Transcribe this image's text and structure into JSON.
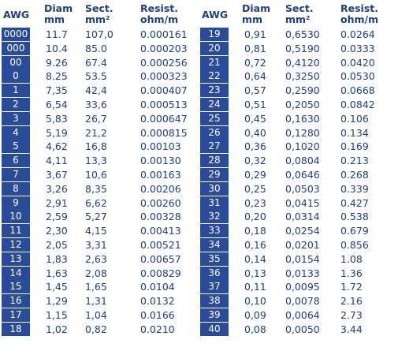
{
  "header": {
    "awg": "AWG",
    "diam": [
      "Diam",
      "mm"
    ],
    "sect": [
      "Sect.",
      "mm²"
    ],
    "resist": [
      "Resist.",
      "ohm/m"
    ]
  },
  "tables": [
    {
      "rows": [
        {
          "awg": "0000",
          "diam": "11.7",
          "sect": "107,0",
          "resist": "0.000161"
        },
        {
          "awg": "000",
          "diam": "10.4",
          "sect": "85.0",
          "resist": "0.000203"
        },
        {
          "awg": "00",
          "diam": "9.26",
          "sect": "67.4",
          "resist": "0.000256"
        },
        {
          "awg": "0",
          "diam": "8.25",
          "sect": "53.5",
          "resist": "0.000323"
        },
        {
          "awg": "1",
          "diam": "7,35",
          "sect": "42,4",
          "resist": "0.000407"
        },
        {
          "awg": "2",
          "diam": "6,54",
          "sect": "33,6",
          "resist": "0.000513"
        },
        {
          "awg": "3",
          "diam": "5,83",
          "sect": "26,7",
          "resist": "0.000647"
        },
        {
          "awg": "4",
          "diam": "5,19",
          "sect": "21,2",
          "resist": "0.000815"
        },
        {
          "awg": "5",
          "diam": "4,62",
          "sect": "16,8",
          "resist": "0.00103"
        },
        {
          "awg": "6",
          "diam": "4,11",
          "sect": "13,3",
          "resist": "0.00130"
        },
        {
          "awg": "7",
          "diam": "3,67",
          "sect": "10,6",
          "resist": "0.00163"
        },
        {
          "awg": "8",
          "diam": "3,26",
          "sect": "8,35",
          "resist": "0.00206"
        },
        {
          "awg": "9",
          "diam": "2,91",
          "sect": "6,62",
          "resist": "0.00260"
        },
        {
          "awg": "10",
          "diam": "2,59",
          "sect": "5,27",
          "resist": "0.00328"
        },
        {
          "awg": "11",
          "diam": "2,30",
          "sect": "4,15",
          "resist": "0.00413"
        },
        {
          "awg": "12",
          "diam": "2,05",
          "sect": "3,31",
          "resist": "0.00521"
        },
        {
          "awg": "13",
          "diam": "1,83",
          "sect": "2,63",
          "resist": "0.00657"
        },
        {
          "awg": "14",
          "diam": "1,63",
          "sect": "2,08",
          "resist": "0.00829"
        },
        {
          "awg": "15",
          "diam": "1,45",
          "sect": "1,65",
          "resist": "0.0104"
        },
        {
          "awg": "16",
          "diam": "1,29",
          "sect": "1,31",
          "resist": "0.0132"
        },
        {
          "awg": "17",
          "diam": "1,15",
          "sect": "1,04",
          "resist": "0.0166"
        },
        {
          "awg": "18",
          "diam": "1,02",
          "sect": "0,82",
          "resist": "0.0210"
        }
      ]
    },
    {
      "rows": [
        {
          "awg": "19",
          "diam": "0,91",
          "sect": "0,6530",
          "resist": "0.0264"
        },
        {
          "awg": "20",
          "diam": "0,81",
          "sect": "0,5190",
          "resist": "0.0333"
        },
        {
          "awg": "21",
          "diam": "0,72",
          "sect": "0,4120",
          "resist": "0.0420"
        },
        {
          "awg": "22",
          "diam": "0,64",
          "sect": "0,3250",
          "resist": "0.0530"
        },
        {
          "awg": "23",
          "diam": "0,57",
          "sect": "0,2590",
          "resist": "0.0668"
        },
        {
          "awg": "24",
          "diam": "0,51",
          "sect": "0,2050",
          "resist": "0.0842"
        },
        {
          "awg": "25",
          "diam": "0,45",
          "sect": "0,1630",
          "resist": "0.106"
        },
        {
          "awg": "26",
          "diam": "0,40",
          "sect": "0,1280",
          "resist": "0.134"
        },
        {
          "awg": "27",
          "diam": "0,36",
          "sect": "0,1020",
          "resist": "0.169"
        },
        {
          "awg": "28",
          "diam": "0,32",
          "sect": "0,0804",
          "resist": "0.213"
        },
        {
          "awg": "29",
          "diam": "0,29",
          "sect": "0,0646",
          "resist": "0.268"
        },
        {
          "awg": "30",
          "diam": "0,25",
          "sect": "0,0503",
          "resist": "0.339"
        },
        {
          "awg": "31",
          "diam": "0,23",
          "sect": "0,0415",
          "resist": "0.427"
        },
        {
          "awg": "32",
          "diam": "0,20",
          "sect": "0,0314",
          "resist": "0.538"
        },
        {
          "awg": "33",
          "diam": "0,18",
          "sect": "0,0254",
          "resist": "0.679"
        },
        {
          "awg": "34",
          "diam": "0,16",
          "sect": "0,0201",
          "resist": "0.856"
        },
        {
          "awg": "35",
          "diam": "0,14",
          "sect": "0,0154",
          "resist": "1.08"
        },
        {
          "awg": "36",
          "diam": "0,13",
          "sect": "0,0133",
          "resist": "1.36"
        },
        {
          "awg": "37",
          "diam": "0,11",
          "sect": "0,0095",
          "resist": "1.72"
        },
        {
          "awg": "38",
          "diam": "0,10",
          "sect": "0,0078",
          "resist": "2.16"
        },
        {
          "awg": "39",
          "diam": "0,09",
          "sect": "0,0064",
          "resist": "2.73"
        },
        {
          "awg": "40",
          "diam": "0,08",
          "sect": "0,0050",
          "resist": "3.44"
        }
      ]
    }
  ],
  "colors": {
    "text": "#1f3e84",
    "awg_cell_bg": "#2a4a9a",
    "awg_cell_text": "#ffffff"
  }
}
